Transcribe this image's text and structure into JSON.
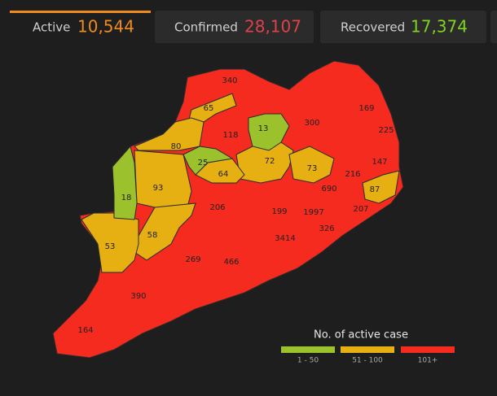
{
  "tabs": [
    {
      "label": "Active",
      "value": "10,544"
    },
    {
      "label": "Confirmed",
      "value": "28,107"
    },
    {
      "label": "Recovered",
      "value": "17,374"
    }
  ],
  "map": {
    "districts": [
      340,
      65,
      169,
      118,
      13,
      300,
      225,
      80,
      25,
      72,
      147,
      73,
      64,
      216,
      93,
      18,
      690,
      87,
      206,
      199,
      1997,
      207,
      326,
      53,
      58,
      3414,
      269,
      466,
      390,
      164
    ]
  },
  "legend": {
    "title": "No. of active case",
    "items": [
      "1 - 50",
      "51 - 100",
      "101+"
    ]
  }
}
